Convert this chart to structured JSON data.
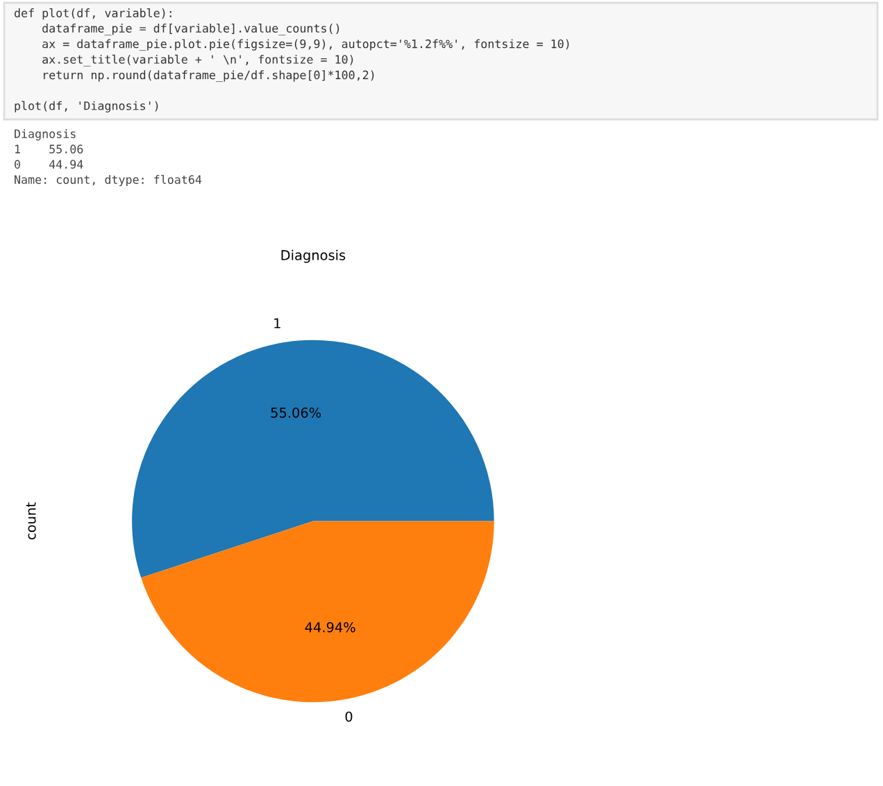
{
  "chart_data": {
    "type": "pie",
    "title": "Diagnosis",
    "ylabel": "count",
    "categories": [
      "1",
      "0"
    ],
    "values": [
      55.06,
      44.94
    ],
    "colors": [
      "#1f77b4",
      "#ff7f0e"
    ],
    "value_labels": [
      "55.06%",
      "44.94%"
    ],
    "annotations": [
      "def plot(df, variable):\n    dataframe_pie = df[variable].value_counts()\n    ax = dataframe_pie.plot.pie(figsize=(9,9), autopct='%1.2f%%', fontsize = 10)\n    ax.set_title(variable + ' \\n', fontsize = 10)\n    return np.round(dataframe_pie/df.shape[0]*100,2)\n\nplot(df, 'Diagnosis')",
      "Diagnosis\n1    55.06\n0    44.94\nName: count, dtype: float64"
    ]
  }
}
